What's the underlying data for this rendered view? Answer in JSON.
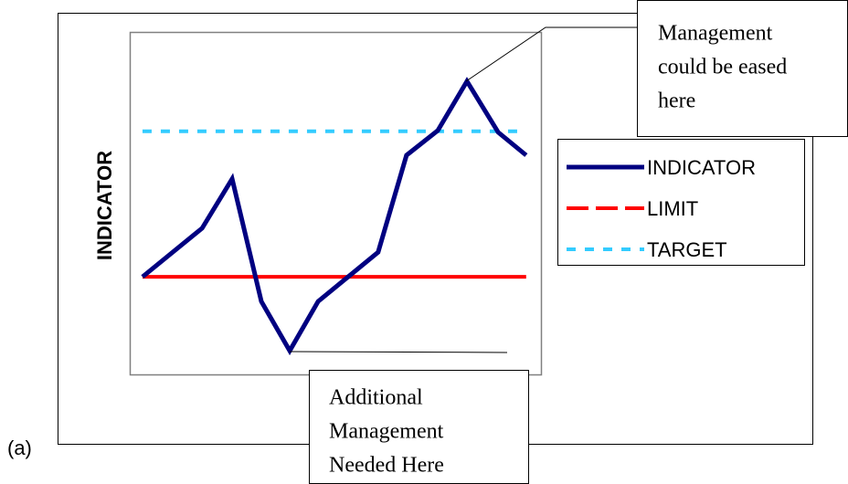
{
  "chart_data": {
    "type": "line",
    "ylabel": "INDICATOR",
    "panel_label": "(a)",
    "xlim": [
      0,
      100
    ],
    "ylim": [
      0,
      100
    ],
    "series": [
      {
        "name": "INDICATOR",
        "color": "#000080",
        "x": [
          3.1,
          17.6,
          24.9,
          32,
          38.9,
          45.8,
          60.4,
          67.3,
          74.9,
          82,
          89.6,
          96.4
        ],
        "values": [
          28.5,
          42.7,
          57.1,
          21.3,
          6.9,
          21.3,
          35.7,
          64,
          71.2,
          85.6,
          70.7,
          64
        ]
      },
      {
        "name": "LIMIT",
        "color": "#ff0000",
        "x": [
          3.1,
          96.4
        ],
        "values": [
          28.5,
          28.5
        ]
      },
      {
        "name": "TARGET",
        "color": "#33ccff",
        "x": [
          3.1,
          96.4
        ],
        "values": [
          71,
          71
        ]
      }
    ],
    "legend": "right",
    "annotations": [
      {
        "lines": [
          "Management",
          "could be eased",
          "here"
        ]
      },
      {
        "lines": [
          "Additional",
          "Management",
          "Needed Here"
        ]
      }
    ]
  }
}
